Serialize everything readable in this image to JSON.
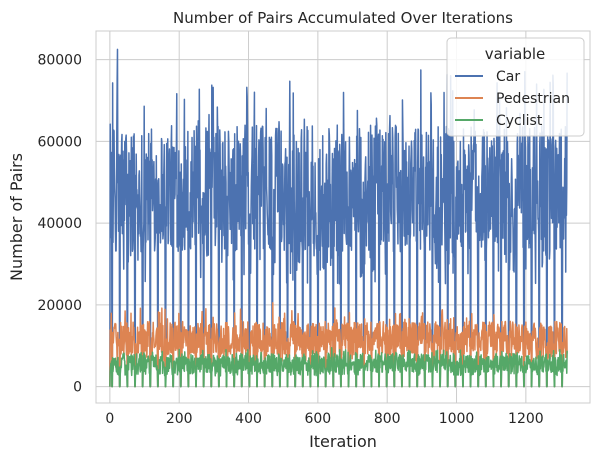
{
  "chart_data": {
    "type": "line",
    "title": "Number of Pairs Accumulated Over Iterations",
    "xlabel": "Iteration",
    "ylabel": "Number of Pairs",
    "xlim": [
      -40,
      1385
    ],
    "ylim": [
      -4000,
      87000
    ],
    "xticks": [
      0,
      200,
      400,
      600,
      800,
      1000,
      1200
    ],
    "yticks": [
      0,
      20000,
      40000,
      60000,
      80000
    ],
    "grid": true,
    "legend": {
      "title": "variable",
      "placement": "top-right"
    },
    "iterations": 1320,
    "series": [
      {
        "name": "Car",
        "color": "#4c72b0",
        "typical_range": [
          33000,
          64000
        ],
        "peak": 82500,
        "peak_iteration": 22,
        "periodic_zero_dips": true
      },
      {
        "name": "Pedestrian",
        "color": "#dd8452",
        "typical_range": [
          8000,
          16000
        ],
        "peak": 20500,
        "periodic_zero_dips": true
      },
      {
        "name": "Cyclist",
        "color": "#55a868",
        "typical_range": [
          3500,
          8000
        ],
        "peak": 9500,
        "periodic_zero_dips": true
      }
    ]
  }
}
